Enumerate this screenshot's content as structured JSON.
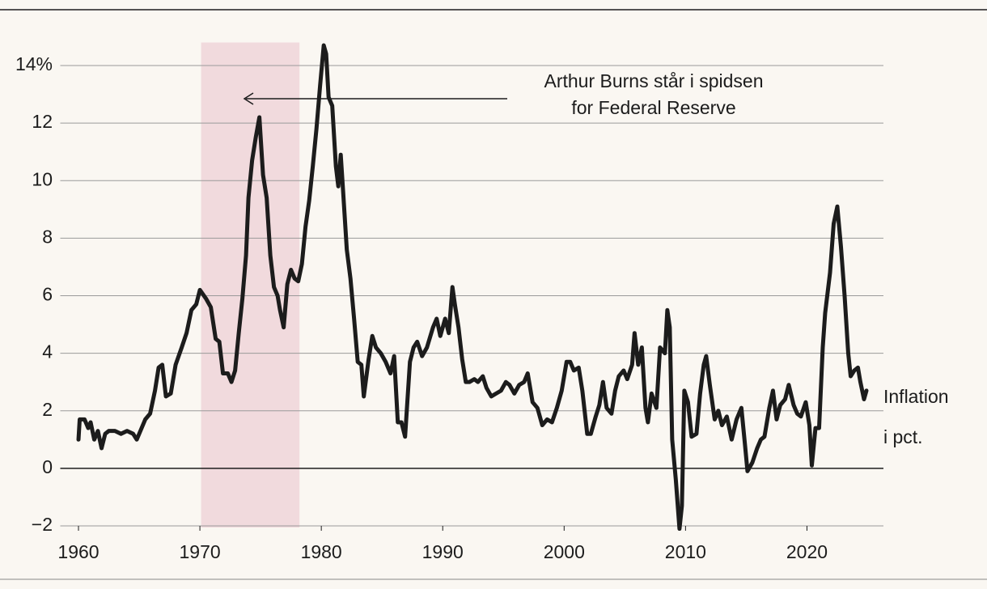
{
  "chart_data": {
    "type": "line",
    "annotation": [
      "Arthur Burns står i spidsen",
      "for Federal Reserve"
    ],
    "series_label": [
      "Inflation",
      "i pct."
    ],
    "highlight_range": [
      1970.1,
      1978.2
    ],
    "highlight_color": "#f1dadd",
    "x": [
      1960.0,
      1960.1,
      1960.5,
      1960.8,
      1961.0,
      1961.3,
      1961.6,
      1961.9,
      1962.2,
      1962.5,
      1963.0,
      1963.5,
      1964.0,
      1964.5,
      1964.8,
      1965.0,
      1965.5,
      1965.9,
      1966.3,
      1966.6,
      1966.9,
      1967.2,
      1967.6,
      1968.0,
      1968.5,
      1968.9,
      1969.3,
      1969.7,
      1970.0,
      1970.5,
      1970.9,
      1971.3,
      1971.6,
      1971.9,
      1972.3,
      1972.6,
      1972.9,
      1973.2,
      1973.5,
      1973.8,
      1974.0,
      1974.3,
      1974.6,
      1974.9,
      1975.2,
      1975.5,
      1975.8,
      1976.1,
      1976.4,
      1976.6,
      1976.9,
      1977.2,
      1977.5,
      1977.8,
      1978.1,
      1978.4,
      1978.7,
      1979.0,
      1979.3,
      1979.6,
      1979.9,
      1980.2,
      1980.4,
      1980.6,
      1980.9,
      1981.2,
      1981.4,
      1981.6,
      1981.8,
      1982.1,
      1982.4,
      1982.7,
      1983.0,
      1983.3,
      1983.5,
      1983.9,
      1984.2,
      1984.5,
      1984.9,
      1985.3,
      1985.7,
      1986.0,
      1986.3,
      1986.6,
      1986.9,
      1987.3,
      1987.6,
      1987.9,
      1988.3,
      1988.7,
      1989.2,
      1989.5,
      1989.8,
      1990.2,
      1990.5,
      1990.8,
      1991.0,
      1991.3,
      1991.6,
      1991.9,
      1992.2,
      1992.6,
      1992.9,
      1993.3,
      1993.6,
      1994.0,
      1994.4,
      1994.8,
      1995.2,
      1995.5,
      1995.9,
      1996.3,
      1996.7,
      1997.0,
      1997.4,
      1997.8,
      1998.2,
      1998.6,
      1999.0,
      1999.4,
      1999.8,
      2000.2,
      2000.5,
      2000.8,
      2001.2,
      2001.5,
      2001.9,
      2002.2,
      2002.6,
      2002.9,
      2003.2,
      2003.5,
      2003.9,
      2004.2,
      2004.5,
      2004.9,
      2005.2,
      2005.6,
      2005.8,
      2006.1,
      2006.4,
      2006.7,
      2006.9,
      2007.2,
      2007.6,
      2007.9,
      2008.3,
      2008.5,
      2008.7,
      2008.9,
      2009.2,
      2009.5,
      2009.7,
      2009.9,
      2010.2,
      2010.5,
      2010.9,
      2011.2,
      2011.5,
      2011.7,
      2012.0,
      2012.4,
      2012.7,
      2013.0,
      2013.4,
      2013.8,
      2014.2,
      2014.6,
      2014.9,
      2015.1,
      2015.5,
      2015.9,
      2016.2,
      2016.5,
      2016.9,
      2017.2,
      2017.5,
      2017.8,
      2018.2,
      2018.5,
      2018.9,
      2019.2,
      2019.5,
      2019.9,
      2020.2,
      2020.4,
      2020.7,
      2021.0,
      2021.3,
      2021.5,
      2021.9,
      2022.2,
      2022.5,
      2022.8,
      2023.1,
      2023.4,
      2023.6,
      2023.9,
      2024.2,
      2024.4,
      2024.7,
      2024.9
    ],
    "series": [
      {
        "color": "#1c1c1c",
        "values": [
          1.0,
          1.7,
          1.7,
          1.4,
          1.6,
          1.0,
          1.3,
          0.7,
          1.2,
          1.3,
          1.3,
          1.2,
          1.3,
          1.2,
          1.0,
          1.2,
          1.7,
          1.9,
          2.7,
          3.5,
          3.6,
          2.5,
          2.6,
          3.6,
          4.2,
          4.7,
          5.5,
          5.7,
          6.2,
          5.9,
          5.6,
          4.5,
          4.4,
          3.3,
          3.3,
          3.0,
          3.4,
          4.7,
          5.9,
          7.4,
          9.4,
          10.7,
          11.5,
          12.2,
          10.2,
          9.4,
          7.4,
          6.3,
          6.0,
          5.5,
          4.9,
          6.4,
          6.9,
          6.6,
          6.5,
          7.1,
          8.4,
          9.3,
          10.5,
          11.8,
          13.3,
          14.7,
          14.4,
          12.9,
          12.6,
          10.5,
          9.8,
          10.9,
          9.6,
          7.6,
          6.6,
          5.2,
          3.7,
          3.6,
          2.5,
          3.8,
          4.6,
          4.2,
          4.0,
          3.7,
          3.3,
          3.9,
          1.6,
          1.6,
          1.1,
          3.7,
          4.2,
          4.4,
          3.9,
          4.2,
          4.9,
          5.2,
          4.6,
          5.2,
          4.7,
          6.3,
          5.7,
          4.9,
          3.8,
          3.0,
          3.0,
          3.1,
          3.0,
          3.2,
          2.8,
          2.5,
          2.6,
          2.7,
          3.0,
          2.9,
          2.6,
          2.9,
          3.0,
          3.3,
          2.3,
          2.1,
          1.5,
          1.7,
          1.6,
          2.1,
          2.7,
          3.7,
          3.7,
          3.4,
          3.5,
          2.7,
          1.2,
          1.2,
          1.8,
          2.2,
          3.0,
          2.1,
          1.9,
          2.7,
          3.2,
          3.4,
          3.1,
          3.6,
          4.7,
          3.6,
          4.2,
          2.1,
          1.6,
          2.6,
          2.1,
          4.2,
          4.0,
          5.5,
          4.9,
          1.0,
          -0.4,
          -2.1,
          -1.3,
          2.7,
          2.3,
          1.1,
          1.2,
          2.6,
          3.6,
          3.9,
          2.9,
          1.7,
          2.0,
          1.5,
          1.8,
          1.0,
          1.7,
          2.1,
          0.8,
          -0.1,
          0.2,
          0.7,
          1.0,
          1.1,
          2.1,
          2.7,
          1.7,
          2.2,
          2.4,
          2.9,
          2.2,
          1.9,
          1.8,
          2.3,
          1.5,
          0.1,
          1.4,
          1.4,
          4.2,
          5.4,
          6.8,
          8.5,
          9.1,
          7.7,
          6.0,
          4.0,
          3.2,
          3.4,
          3.5,
          3.0,
          2.4,
          2.7
        ]
      }
    ],
    "xlim": [
      1958.5,
      2026.3
    ],
    "xticks": [
      1960,
      1970,
      1980,
      1990,
      2000,
      2010,
      2020
    ],
    "ylim": [
      -2,
      14.8
    ],
    "yticks": [
      {
        "value": -2,
        "label": "−2"
      },
      0,
      2,
      4,
      6,
      8,
      10,
      12,
      {
        "value": 14,
        "label": "14%"
      }
    ],
    "grid": true
  }
}
